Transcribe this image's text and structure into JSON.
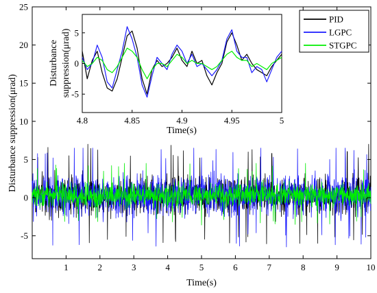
{
  "chart_data": [
    {
      "id": "main",
      "type": "line",
      "xlabel": "Time(s)",
      "ylabel": "Disturbance suppression(μrad)",
      "xlim": [
        0,
        10
      ],
      "ylim": [
        -8,
        25
      ],
      "xticks": [
        1,
        2,
        3,
        4,
        5,
        6,
        7,
        8,
        9,
        10
      ],
      "yticks": [
        -5,
        0,
        5,
        10,
        15,
        20,
        25
      ],
      "grid": false,
      "legend": {
        "placement": "top-right",
        "entries": [
          {
            "name": "PID",
            "color": "#000000"
          },
          {
            "name": "LGPC",
            "color": "#1a1aff"
          },
          {
            "name": "STGPC",
            "color": "#00ee00"
          }
        ]
      },
      "series": [
        {
          "name": "PID",
          "color": "#000000",
          "amplitude": 2.2,
          "peak_range": [
            -6.5,
            7.0
          ],
          "mean": 0.3
        },
        {
          "name": "LGPC",
          "color": "#1a1aff",
          "amplitude": 2.4,
          "peak_range": [
            -6.8,
            6.5
          ],
          "mean": 0.3
        },
        {
          "name": "STGPC",
          "color": "#00ee00",
          "amplitude": 1.3,
          "peak_range": [
            -4.0,
            4.5
          ],
          "mean": 0.3
        }
      ]
    },
    {
      "id": "inset",
      "type": "line",
      "xlabel": "Time(s)",
      "ylabel": "Disturbance suppression(μrad)",
      "xlim": [
        4.8,
        5.0
      ],
      "ylim": [
        -8,
        8
      ],
      "xticks": [
        4.8,
        4.85,
        4.9,
        4.95,
        5
      ],
      "xtick_labels": [
        "4.8",
        "4.85",
        "4.9",
        "4.95",
        "5"
      ],
      "yticks": [
        -5,
        0,
        5
      ],
      "grid": false,
      "x": [
        4.8,
        4.805,
        4.81,
        4.815,
        4.82,
        4.825,
        4.83,
        4.835,
        4.84,
        4.845,
        4.85,
        4.855,
        4.86,
        4.865,
        4.87,
        4.875,
        4.88,
        4.885,
        4.89,
        4.895,
        4.9,
        4.905,
        4.91,
        4.915,
        4.92,
        4.925,
        4.93,
        4.935,
        4.94,
        4.945,
        4.95,
        4.955,
        4.96,
        4.965,
        4.97,
        4.975,
        4.98,
        4.985,
        4.99,
        4.995,
        5.0
      ],
      "series": [
        {
          "name": "PID",
          "color": "#000000",
          "values": [
            2.0,
            -2.5,
            0.5,
            2.0,
            -1.5,
            -4.0,
            -4.5,
            -2.5,
            1.0,
            4.5,
            5.3,
            2.5,
            -2.5,
            -5.0,
            -1.0,
            0.5,
            -0.5,
            0.0,
            1.0,
            2.5,
            0.5,
            -0.5,
            2.0,
            0.0,
            0.5,
            -2.0,
            -3.5,
            -1.5,
            0.0,
            3.5,
            5.0,
            3.0,
            0.5,
            1.5,
            0.0,
            -1.0,
            -1.5,
            -2.0,
            -0.5,
            0.5,
            1.5
          ]
        },
        {
          "name": "LGPC",
          "color": "#1a1aff",
          "values": [
            1.0,
            -1.0,
            0.0,
            3.0,
            1.0,
            -3.0,
            -4.0,
            -1.0,
            2.0,
            6.0,
            4.0,
            1.0,
            -3.5,
            -5.5,
            -2.0,
            1.0,
            0.0,
            -1.0,
            1.5,
            3.0,
            2.0,
            0.0,
            1.5,
            -0.5,
            0.0,
            -1.0,
            -2.0,
            -1.0,
            0.5,
            4.0,
            5.5,
            2.0,
            1.0,
            1.0,
            -1.5,
            -0.5,
            -1.0,
            -3.0,
            -1.0,
            1.0,
            2.0
          ]
        },
        {
          "name": "STGPC",
          "color": "#00ee00",
          "values": [
            0.5,
            -0.5,
            0.0,
            1.0,
            0.5,
            -1.0,
            -1.5,
            -0.5,
            1.0,
            2.5,
            2.0,
            1.0,
            -1.0,
            -2.5,
            -1.0,
            0.0,
            0.0,
            -0.5,
            0.5,
            1.5,
            1.0,
            0.0,
            0.5,
            0.0,
            0.0,
            -0.5,
            -1.0,
            -0.5,
            0.5,
            1.5,
            2.0,
            1.0,
            0.5,
            0.5,
            -0.5,
            0.0,
            -0.5,
            -1.0,
            0.0,
            0.5,
            1.0
          ]
        }
      ]
    }
  ]
}
